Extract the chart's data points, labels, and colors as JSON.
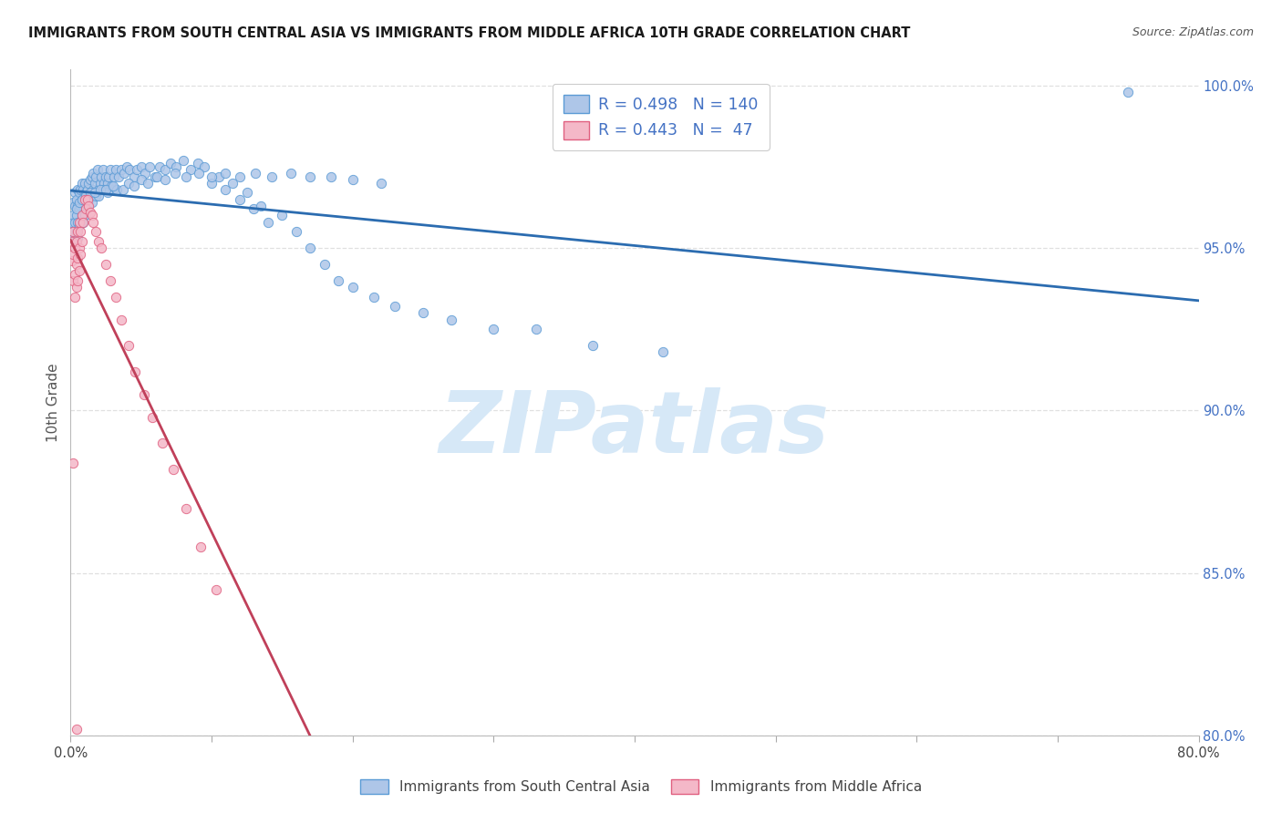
{
  "title": "IMMIGRANTS FROM SOUTH CENTRAL ASIA VS IMMIGRANTS FROM MIDDLE AFRICA 10TH GRADE CORRELATION CHART",
  "source": "Source: ZipAtlas.com",
  "ylabel": "10th Grade",
  "xlim": [
    0.0,
    0.8
  ],
  "ylim": [
    0.8,
    1.005
  ],
  "yticks": [
    0.8,
    0.85,
    0.9,
    0.95,
    1.0
  ],
  "ytick_labels": [
    "80.0%",
    "85.0%",
    "90.0%",
    "95.0%",
    "100.0%"
  ],
  "xtick_positions": [
    0.0,
    0.1,
    0.2,
    0.3,
    0.4,
    0.5,
    0.6,
    0.7,
    0.8
  ],
  "xtick_labels": [
    "0.0%",
    "",
    "",
    "",
    "",
    "",
    "",
    "",
    "80.0%"
  ],
  "legend_blue_r": "R = 0.498",
  "legend_blue_n": "N = 140",
  "legend_pink_r": "R = 0.443",
  "legend_pink_n": "N =  47",
  "blue_fill": "#aec6e8",
  "blue_edge": "#5b9bd5",
  "pink_fill": "#f4b8c8",
  "pink_edge": "#e06080",
  "blue_line_color": "#2b6cb0",
  "pink_line_color": "#c0405a",
  "watermark": "ZIPatlas",
  "watermark_color": "#d6e8f7",
  "title_color": "#1a1a1a",
  "source_color": "#555555",
  "axis_label_color": "#555555",
  "right_tick_color": "#4472c4",
  "grid_color": "#e0e0e0",
  "bottom_legend_blue": "Immigrants from South Central Asia",
  "bottom_legend_pink": "Immigrants from Middle Africa",
  "blue_scatter_x": [
    0.001,
    0.001,
    0.002,
    0.002,
    0.002,
    0.003,
    0.003,
    0.003,
    0.003,
    0.004,
    0.004,
    0.004,
    0.005,
    0.005,
    0.005,
    0.005,
    0.006,
    0.006,
    0.006,
    0.007,
    0.007,
    0.007,
    0.008,
    0.008,
    0.008,
    0.009,
    0.009,
    0.009,
    0.01,
    0.01,
    0.01,
    0.011,
    0.011,
    0.012,
    0.012,
    0.013,
    0.013,
    0.014,
    0.014,
    0.015,
    0.015,
    0.016,
    0.016,
    0.017,
    0.018,
    0.019,
    0.02,
    0.021,
    0.022,
    0.023,
    0.024,
    0.025,
    0.026,
    0.027,
    0.028,
    0.03,
    0.031,
    0.032,
    0.034,
    0.036,
    0.038,
    0.04,
    0.042,
    0.045,
    0.047,
    0.05,
    0.053,
    0.056,
    0.06,
    0.063,
    0.067,
    0.071,
    0.075,
    0.08,
    0.085,
    0.09,
    0.095,
    0.1,
    0.105,
    0.11,
    0.115,
    0.12,
    0.125,
    0.13,
    0.135,
    0.14,
    0.15,
    0.16,
    0.17,
    0.18,
    0.19,
    0.2,
    0.215,
    0.23,
    0.25,
    0.27,
    0.3,
    0.33,
    0.37,
    0.42,
    0.008,
    0.01,
    0.012,
    0.015,
    0.018,
    0.02,
    0.023,
    0.026,
    0.029,
    0.033,
    0.037,
    0.041,
    0.045,
    0.05,
    0.055,
    0.061,
    0.067,
    0.074,
    0.082,
    0.091,
    0.1,
    0.11,
    0.12,
    0.131,
    0.143,
    0.156,
    0.17,
    0.185,
    0.2,
    0.22,
    0.004,
    0.006,
    0.008,
    0.011,
    0.014,
    0.017,
    0.021,
    0.025,
    0.03,
    0.75
  ],
  "blue_scatter_y": [
    0.953,
    0.958,
    0.955,
    0.96,
    0.964,
    0.952,
    0.958,
    0.963,
    0.967,
    0.955,
    0.96,
    0.965,
    0.953,
    0.958,
    0.963,
    0.968,
    0.957,
    0.962,
    0.967,
    0.958,
    0.963,
    0.968,
    0.96,
    0.965,
    0.97,
    0.958,
    0.963,
    0.968,
    0.96,
    0.965,
    0.97,
    0.962,
    0.967,
    0.963,
    0.968,
    0.965,
    0.97,
    0.966,
    0.971,
    0.967,
    0.972,
    0.968,
    0.973,
    0.97,
    0.972,
    0.974,
    0.968,
    0.97,
    0.972,
    0.974,
    0.97,
    0.972,
    0.97,
    0.972,
    0.974,
    0.968,
    0.972,
    0.974,
    0.972,
    0.974,
    0.973,
    0.975,
    0.974,
    0.972,
    0.974,
    0.975,
    0.973,
    0.975,
    0.972,
    0.975,
    0.974,
    0.976,
    0.975,
    0.977,
    0.974,
    0.976,
    0.975,
    0.97,
    0.972,
    0.968,
    0.97,
    0.965,
    0.967,
    0.962,
    0.963,
    0.958,
    0.96,
    0.955,
    0.95,
    0.945,
    0.94,
    0.938,
    0.935,
    0.932,
    0.93,
    0.928,
    0.925,
    0.925,
    0.92,
    0.918,
    0.958,
    0.96,
    0.962,
    0.964,
    0.966,
    0.966,
    0.968,
    0.967,
    0.969,
    0.968,
    0.968,
    0.97,
    0.969,
    0.971,
    0.97,
    0.972,
    0.971,
    0.973,
    0.972,
    0.973,
    0.972,
    0.973,
    0.972,
    0.973,
    0.972,
    0.973,
    0.972,
    0.972,
    0.971,
    0.97,
    0.962,
    0.964,
    0.965,
    0.966,
    0.967,
    0.967,
    0.968,
    0.968,
    0.969,
    0.998
  ],
  "pink_scatter_x": [
    0.001,
    0.001,
    0.002,
    0.002,
    0.002,
    0.003,
    0.003,
    0.003,
    0.004,
    0.004,
    0.004,
    0.005,
    0.005,
    0.005,
    0.006,
    0.006,
    0.006,
    0.007,
    0.007,
    0.008,
    0.008,
    0.009,
    0.01,
    0.011,
    0.012,
    0.013,
    0.014,
    0.015,
    0.016,
    0.018,
    0.02,
    0.022,
    0.025,
    0.028,
    0.032,
    0.036,
    0.041,
    0.046,
    0.052,
    0.058,
    0.065,
    0.073,
    0.082,
    0.092,
    0.103,
    0.002,
    0.004
  ],
  "pink_scatter_y": [
    0.946,
    0.952,
    0.94,
    0.948,
    0.955,
    0.935,
    0.942,
    0.95,
    0.938,
    0.945,
    0.952,
    0.94,
    0.947,
    0.955,
    0.943,
    0.95,
    0.958,
    0.948,
    0.955,
    0.952,
    0.96,
    0.958,
    0.965,
    0.962,
    0.965,
    0.963,
    0.961,
    0.96,
    0.958,
    0.955,
    0.952,
    0.95,
    0.945,
    0.94,
    0.935,
    0.928,
    0.92,
    0.912,
    0.905,
    0.898,
    0.89,
    0.882,
    0.87,
    0.858,
    0.845,
    0.884,
    0.802
  ]
}
